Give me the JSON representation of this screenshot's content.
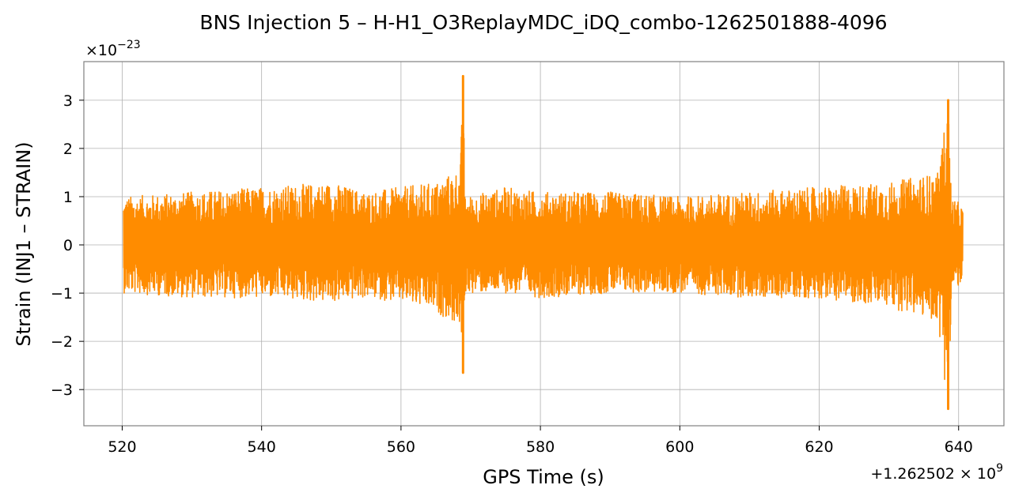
{
  "chart_data": {
    "type": "line",
    "title": "BNS Injection 5 – H-H1_O3ReplayMDC_iDQ_combo-1262501888-4096",
    "xlabel": "GPS Time (s)",
    "ylabel": "Strain (INJ1 – STRAIN)",
    "x_offset_label": "+1.262502 × 10",
    "x_offset_exp": "9",
    "y_scale_label": "×10",
    "y_scale_exp": "−23",
    "xlim": [
      514.5,
      646.5
    ],
    "ylim": [
      -3.75,
      3.8
    ],
    "x_ticks": [
      520,
      540,
      560,
      580,
      600,
      620,
      640
    ],
    "x_tick_labels": [
      "520",
      "540",
      "560",
      "580",
      "600",
      "620",
      "640"
    ],
    "y_ticks": [
      -3,
      -2,
      -1,
      0,
      1,
      2,
      3
    ],
    "y_tick_labels": [
      "−3",
      "−2",
      "−1",
      "0",
      "1",
      "2",
      "3"
    ],
    "grid": true,
    "color": "#ff8c00",
    "series": [
      {
        "x_range": [
          520.2,
          640.6
        ],
        "envelope": [
          {
            "x": 520.2,
            "max": 1.0,
            "min": -1.0
          },
          {
            "x": 530,
            "max": 1.1,
            "min": -1.1
          },
          {
            "x": 540,
            "max": 1.2,
            "min": -1.1
          },
          {
            "x": 550,
            "max": 1.3,
            "min": -1.2
          },
          {
            "x": 555,
            "max": 1.1,
            "min": -1.1
          },
          {
            "x": 560,
            "max": 1.2,
            "min": -1.2
          },
          {
            "x": 565,
            "max": 1.3,
            "min": -1.4
          },
          {
            "x": 568.5,
            "max": 1.6,
            "min": -1.7
          },
          {
            "x": 568.9,
            "max": 3.5,
            "min": -2.65
          },
          {
            "x": 569.2,
            "max": 1.0,
            "min": -1.0
          },
          {
            "x": 575,
            "max": 1.2,
            "min": -1.0
          },
          {
            "x": 580,
            "max": 1.1,
            "min": -1.1
          },
          {
            "x": 590,
            "max": 1.1,
            "min": -1.0
          },
          {
            "x": 600,
            "max": 1.0,
            "min": -1.0
          },
          {
            "x": 610,
            "max": 1.1,
            "min": -1.1
          },
          {
            "x": 620,
            "max": 1.2,
            "min": -1.1
          },
          {
            "x": 630,
            "max": 1.3,
            "min": -1.3
          },
          {
            "x": 637,
            "max": 1.5,
            "min": -1.6
          },
          {
            "x": 638.5,
            "max": 3.0,
            "min": -3.4
          },
          {
            "x": 639,
            "max": 1.0,
            "min": -1.0
          },
          {
            "x": 640.6,
            "max": 0.8,
            "min": -0.8
          }
        ],
        "chirp_peaks": [
          {
            "x": 568.9,
            "max": 3.5,
            "min": -2.65
          },
          {
            "x": 638.5,
            "max": 3.0,
            "min": -3.4
          }
        ]
      }
    ]
  }
}
